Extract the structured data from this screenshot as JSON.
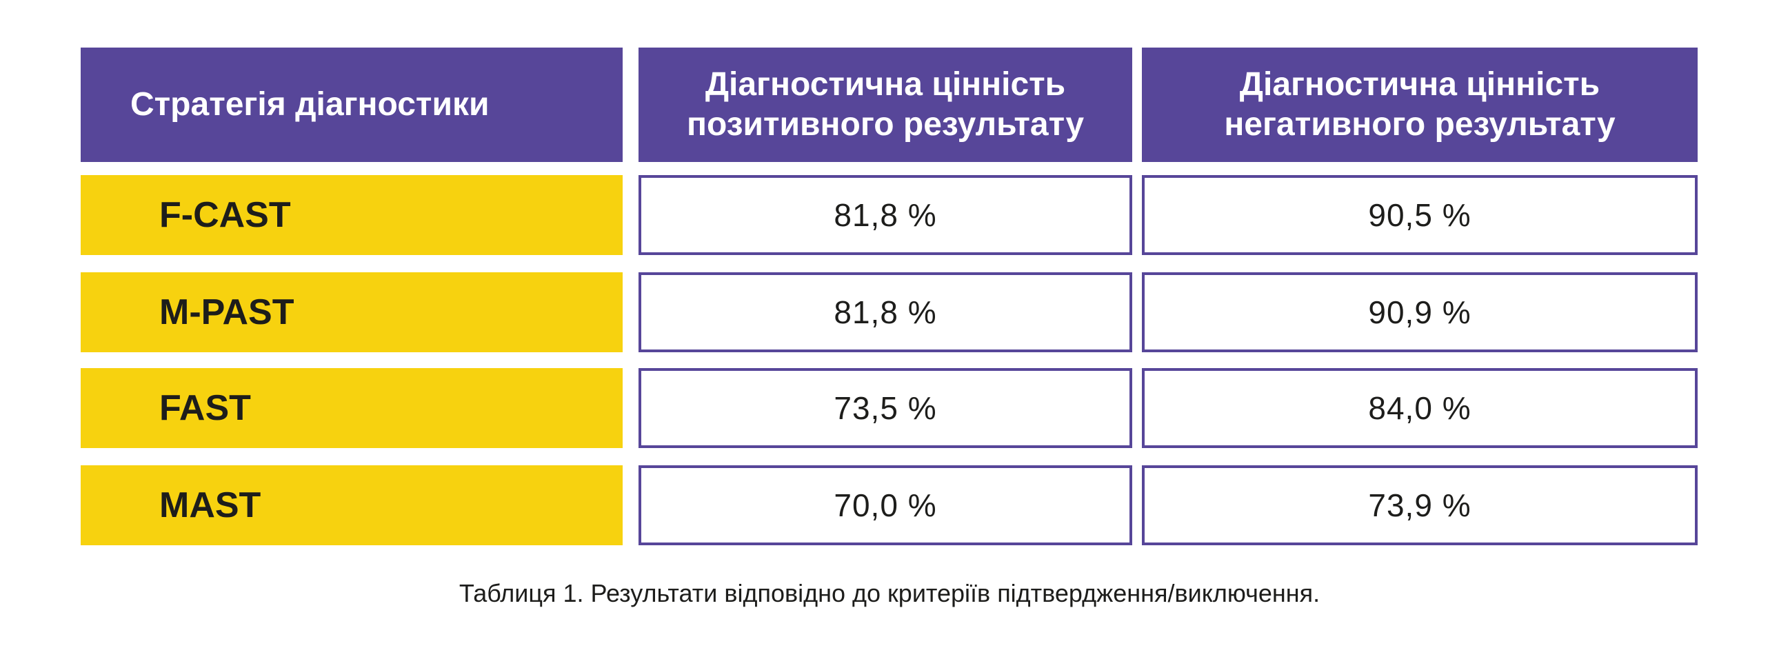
{
  "table": {
    "headers": [
      "Стратегія діагностики",
      "Діагностична цінність позитивного результату",
      "Діагностична цінність негативного результату"
    ],
    "header_lines": {
      "positive": [
        "Діагностична цінність",
        "позитивного результату"
      ],
      "negative": [
        "Діагностична цінність",
        "негативного результату"
      ]
    },
    "rows": [
      {
        "strategy": "F-CAST",
        "positive": "81,8 %",
        "negative": "90,5 %"
      },
      {
        "strategy": "M-PAST",
        "positive": "81,8 %",
        "negative": "90,9 %"
      },
      {
        "strategy": "FAST",
        "positive": "73,5 %",
        "negative": "84,0 %"
      },
      {
        "strategy": "MAST",
        "positive": "70,0 %",
        "negative": "73,9 %"
      }
    ]
  },
  "caption": "Таблиця 1. Результати відповідно до критеріїв підтвердження/виключення.",
  "colors": {
    "header": "#574699",
    "label": "#F7D20F",
    "border": "#574699"
  }
}
